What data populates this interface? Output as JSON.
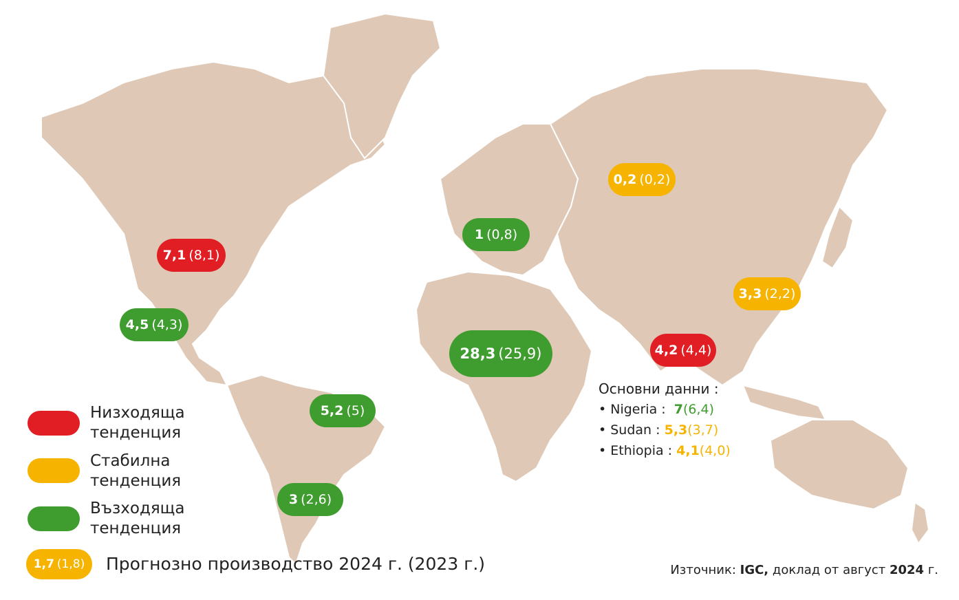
{
  "markers": [
    {
      "id": "usa",
      "value": "7,1",
      "prev": "(8,1)",
      "trend": "red"
    },
    {
      "id": "mexico",
      "value": "4,5",
      "prev": "(4,3)",
      "trend": "green"
    },
    {
      "id": "brazil",
      "value": "5,2",
      "prev": "(5)",
      "trend": "green"
    },
    {
      "id": "argentina",
      "value": "3",
      "prev": "(2,6)",
      "trend": "green"
    },
    {
      "id": "europe",
      "value": "1",
      "prev": "(0,8)",
      "trend": "green"
    },
    {
      "id": "africa",
      "value": "28,3",
      "prev": "(25,9)",
      "trend": "green"
    },
    {
      "id": "russia",
      "value": "0,2",
      "prev": "(0,2)",
      "trend": "yellow"
    },
    {
      "id": "china",
      "value": "3,3",
      "prev": "(2,2)",
      "trend": "yellow"
    },
    {
      "id": "india",
      "value": "4,2",
      "prev": "(4,4)",
      "trend": "red"
    }
  ],
  "main_data": {
    "title": "Основни данни :",
    "items": [
      {
        "country": "Nigeria :",
        "value": "7",
        "prev": "(6,4)",
        "color": "green"
      },
      {
        "country": "Sudan :",
        "value": "5,3",
        "prev": "(3,7)",
        "color": "yellow"
      },
      {
        "country": "Ethiopia :",
        "value": "4,1",
        "prev": "(4,0)",
        "color": "yellow"
      }
    ]
  },
  "legend": [
    {
      "label": "Низходяща\nтенденция",
      "color": "red"
    },
    {
      "label": "Стабилна\nтенденция",
      "color": "yellow"
    },
    {
      "label": "Възходяща\nтенденция",
      "color": "green"
    }
  ],
  "forecast": {
    "sample_value": "1,7",
    "sample_prev": "(1,8)",
    "text": "Прогнозно производство 2024 г. (2023 г.)"
  },
  "source": {
    "prefix": "Източник: ",
    "org": "IGC,",
    "middle": " доклад от август ",
    "year": "2024",
    "suffix": " г."
  },
  "colors": {
    "red": "#e01e24",
    "yellow": "#f6b400",
    "green": "#3f9d2f",
    "land": "#dfc9b6"
  }
}
